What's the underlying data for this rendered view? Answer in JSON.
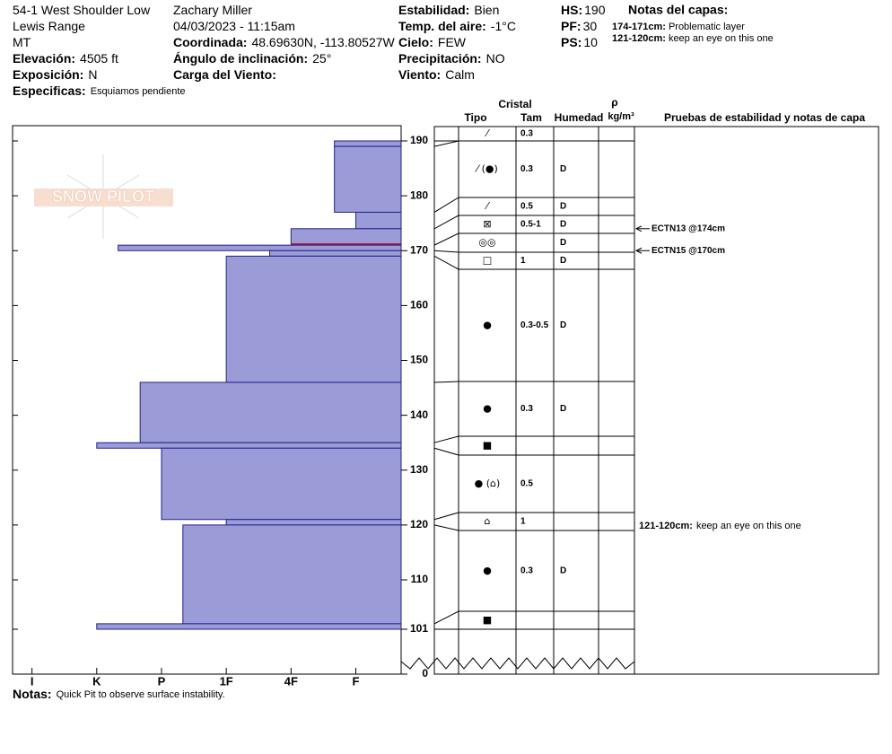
{
  "header": {
    "columns": [
      [
        {
          "value": "54-1 West Shoulder Low"
        },
        {
          "value": "Lewis Range"
        },
        {
          "value": "MT"
        },
        {
          "label": "Elevación:",
          "value": "4505 ft"
        },
        {
          "label": "Exposición:",
          "value": "N"
        },
        {
          "label": "Especificas:",
          "value": "Esquiamos pendiente"
        }
      ],
      [
        {
          "value": "Zachary Miller"
        },
        {
          "value": "04/03/2023 - 11:15am"
        },
        {
          "label": "Coordinada:",
          "value": "48.69630N, -113.80527W"
        },
        {
          "label": "Ángulo de inclinación:",
          "value": "25°"
        },
        {
          "label": "Carga del Viento:"
        }
      ],
      [
        {
          "label": "Estabilidad:",
          "value": "Bien"
        },
        {
          "label": "Temp. del aire:",
          "value": "-1°C"
        },
        {
          "label": "Cielo:",
          "value": "FEW"
        },
        {
          "label": "Precipitación:",
          "value": "NO"
        },
        {
          "label": "Viento:",
          "value": "Calm"
        }
      ],
      [
        {
          "label": "HS:",
          "value": "190"
        },
        {
          "label": "PF:",
          "value": "30"
        },
        {
          "label": "PS:",
          "value": "10"
        }
      ]
    ],
    "notes_title": "Notas del capas:",
    "notes": [
      {
        "label": "174-171cm:",
        "value": "Problematic layer"
      },
      {
        "label": "121-120cm:",
        "value": "keep an eye on this one"
      }
    ]
  },
  "logo": "SNOW PILOT",
  "table_header": {
    "cristal": "Cristal",
    "tipo": "Tipo",
    "tam": "Tam",
    "humedad": "Humedad",
    "rho": "ρ",
    "density_unit": "kg/m³",
    "tests": "Pruebas de estabilidad y notas de capa"
  },
  "chart_data": {
    "type": "snow-profile",
    "depth_range": [
      190,
      101
    ],
    "depth_ticks": [
      190,
      180,
      170,
      160,
      150,
      140,
      130,
      120,
      110,
      101,
      0
    ],
    "hardness_lim": [
      6.3,
      0.3
    ],
    "hardness_ticks": [
      {
        "value": 6,
        "label": "I"
      },
      {
        "value": 5,
        "label": "K"
      },
      {
        "value": 4,
        "label": "P"
      },
      {
        "value": 3,
        "label": "1F"
      },
      {
        "value": 2,
        "label": "4F"
      },
      {
        "value": 1,
        "label": "F"
      }
    ],
    "bar_color": "#9b9bd7",
    "layers": [
      {
        "top": 190,
        "bottom": 189,
        "hardness": 1.33,
        "grain": "⁄",
        "size": "0.3"
      },
      {
        "top": 189,
        "bottom": 177,
        "hardness": 1.33,
        "grain": "⁄ (●)",
        "size": "0.3",
        "moisture": "D"
      },
      {
        "top": 177,
        "bottom": 174,
        "hardness": 1,
        "grain": "⁄",
        "size": "0.5",
        "moisture": "D"
      },
      {
        "top": 174,
        "bottom": 171,
        "hardness": 2,
        "grain": "⊠",
        "size": "0.5-1",
        "moisture": "D",
        "problematic": true
      },
      {
        "top": 171,
        "bottom": 170,
        "hardness": 4.67,
        "grain": "◎◎",
        "moisture": "D"
      },
      {
        "top": 170,
        "bottom": 169,
        "hardness": 2.33,
        "grain": "□",
        "size": "1",
        "moisture": "D"
      },
      {
        "top": 169,
        "bottom": 146,
        "hardness": 3,
        "grain": "●",
        "size": "0.3-0.5",
        "moisture": "D"
      },
      {
        "top": 146,
        "bottom": 135,
        "hardness": 4.33,
        "grain": "●",
        "size": "0.3",
        "moisture": "D"
      },
      {
        "top": 135,
        "bottom": 134,
        "hardness": 5,
        "grain": "■"
      },
      {
        "top": 134,
        "bottom": 121,
        "hardness": 4,
        "grain": "● (⌂)",
        "size": "0.5"
      },
      {
        "top": 121,
        "bottom": 120,
        "hardness": 3,
        "grain": "⌂",
        "size": "1",
        "note_label": "121-120cm:",
        "note": "keep an eye on this one"
      },
      {
        "top": 120,
        "bottom": 102,
        "hardness": 3.67,
        "grain": "●",
        "size": "0.3",
        "moisture": "D"
      },
      {
        "top": 102,
        "bottom": 101,
        "hardness": 5,
        "grain": "■"
      }
    ],
    "tests": [
      {
        "label": "ECTN13 @174cm",
        "depth": 174
      },
      {
        "label": "ECTN15 @170cm",
        "depth": 170
      }
    ]
  },
  "footer": {
    "label": "Notas:",
    "value": "Quick Pit to observe surface instability."
  }
}
